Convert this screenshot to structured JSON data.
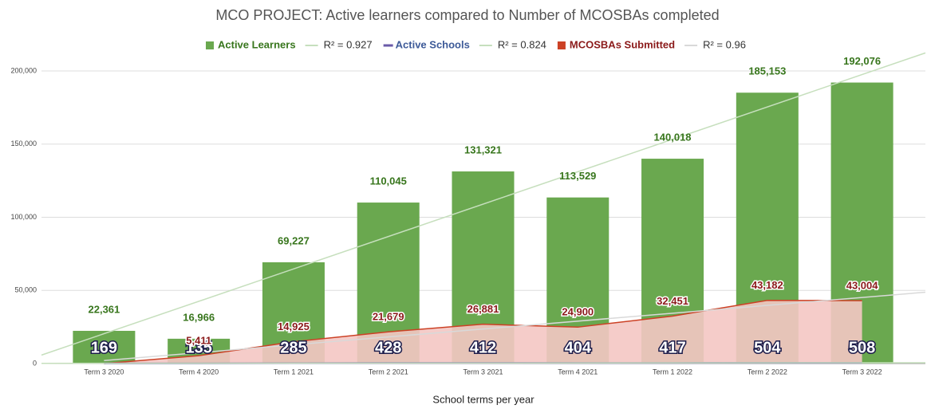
{
  "chart_data": {
    "type": "combo",
    "title": "MCO PROJECT: Active learners compared to Number of MCOSBAs completed",
    "x_label": "School terms per year",
    "categories": [
      "Term 3 2020",
      "Term 4 2020",
      "Term 1 2021",
      "Term 2 2021",
      "Term 3 2021",
      "Term 4 2021",
      "Term 1 2022",
      "Term 2 2022",
      "Term 3 2022"
    ],
    "series": [
      {
        "name": "Active Learners",
        "type": "bar",
        "color": "#6aa84f",
        "label_color": "#38761d",
        "values": [
          22361,
          16966,
          69227,
          110045,
          131321,
          113529,
          140018,
          185153,
          192076
        ],
        "value_labels": [
          "22,361",
          "16,966",
          "69,227",
          "110,045",
          "131,321",
          "113,529",
          "140,018",
          "185,153",
          "192,076"
        ],
        "trendline": {
          "label": "R² = 0.927",
          "color": "#c6dfbd"
        }
      },
      {
        "name": "Active Schools",
        "type": "line",
        "color": "#6a5aa8",
        "label_color": "#3d5a98",
        "values": [
          169,
          135,
          285,
          428,
          412,
          404,
          417,
          504,
          508
        ],
        "trendline": {
          "label": "R² = 0.824",
          "color": "#c6dfbd"
        }
      },
      {
        "name": "MCOSBAs Submitted",
        "type": "area",
        "color": "#cc4125",
        "fill": "#f4c7c3",
        "label_color": "#8b1a1a",
        "values": [
          0,
          5411,
          14925,
          21679,
          26881,
          24900,
          32451,
          43182,
          43004
        ],
        "value_labels": [
          null,
          "5,411",
          "14,925",
          "21,679",
          "26,881",
          "24,900",
          "32,451",
          "43,182",
          "43,004"
        ],
        "trendline": {
          "label": "R² = 0.96",
          "color": "#d9d9d9"
        }
      }
    ],
    "ylim": [
      0,
      200000
    ],
    "yticks": [
      {
        "value": 0,
        "label": "0"
      },
      {
        "value": 50000,
        "label": "50,000"
      },
      {
        "value": 100000,
        "label": "100,000"
      },
      {
        "value": 150000,
        "label": "150,000"
      },
      {
        "value": 200000,
        "label": "200,000"
      }
    ],
    "grid": true
  }
}
